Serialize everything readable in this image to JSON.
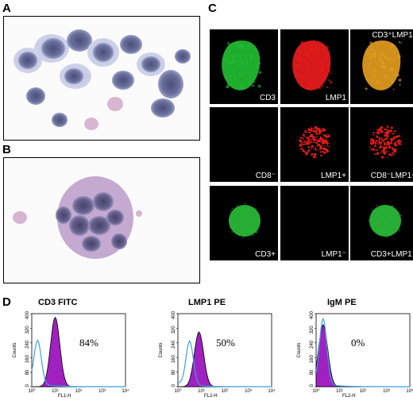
{
  "panel_letters": {
    "a": "A",
    "b": "B",
    "c": "C",
    "d": "D"
  },
  "fluorescence": {
    "rows": [
      [
        {
          "label": "CD3",
          "color": "#22c033",
          "shape": "large"
        },
        {
          "label": "LMP1",
          "color": "#ee1c1c",
          "shape": "large"
        },
        {
          "label": "CD3⁺LMP1⁺",
          "color": "#e8a020",
          "shape": "large",
          "label_top": true
        }
      ],
      [
        {
          "label": "CD8⁻",
          "color": "",
          "shape": "none"
        },
        {
          "label": "LMP1+",
          "color": "#e01a1a",
          "shape": "speckle"
        },
        {
          "label": "CD8⁻LMP1+",
          "color": "#e01a1a",
          "shape": "speckle"
        }
      ],
      [
        {
          "label": "CD3+",
          "color": "#2bbf3a",
          "shape": "round"
        },
        {
          "label": "LMP1⁻",
          "color": "",
          "shape": "none"
        },
        {
          "label": "CD3+LMP1⁻",
          "color": "#2bbf3a",
          "shape": "round"
        }
      ]
    ]
  },
  "flow_histograms": [
    {
      "title": "CD3 FITC",
      "percent": "84%",
      "x_axis_label": "FL1-H",
      "y_axis_label": "Counts",
      "x_ticks": [
        "10⁰",
        "10¹",
        "10²",
        "10³",
        "10⁴"
      ],
      "y_ticks": [
        "0",
        "80",
        "160",
        "240",
        "320",
        "400"
      ],
      "control_peak_decade": 0.25,
      "sample_peak_decade": 1.0,
      "control_peak_count": 240,
      "sample_peak_count": 380
    },
    {
      "title": "LMP1 PE",
      "percent": "50%",
      "x_axis_label": "FL2-H",
      "y_axis_label": "Counts",
      "x_ticks": [
        "10⁰",
        "10¹",
        "10²",
        "10³",
        "10⁴"
      ],
      "y_ticks": [
        "0",
        "80",
        "160",
        "240",
        "320",
        "400"
      ],
      "control_peak_decade": 0.5,
      "sample_peak_decade": 0.9,
      "control_peak_count": 240,
      "sample_peak_count": 300
    },
    {
      "title": "IgM PE",
      "percent": "0%",
      "x_axis_label": "FL2-H",
      "y_axis_label": "Counts",
      "x_ticks": [
        "10⁰",
        "10¹",
        "10²",
        "10³",
        "10⁴"
      ],
      "y_ticks": [
        "0",
        "80",
        "160",
        "240",
        "320",
        "400"
      ],
      "control_peak_decade": 0.3,
      "sample_peak_decade": 0.3,
      "control_peak_count": 360,
      "sample_peak_count": 340
    }
  ]
}
